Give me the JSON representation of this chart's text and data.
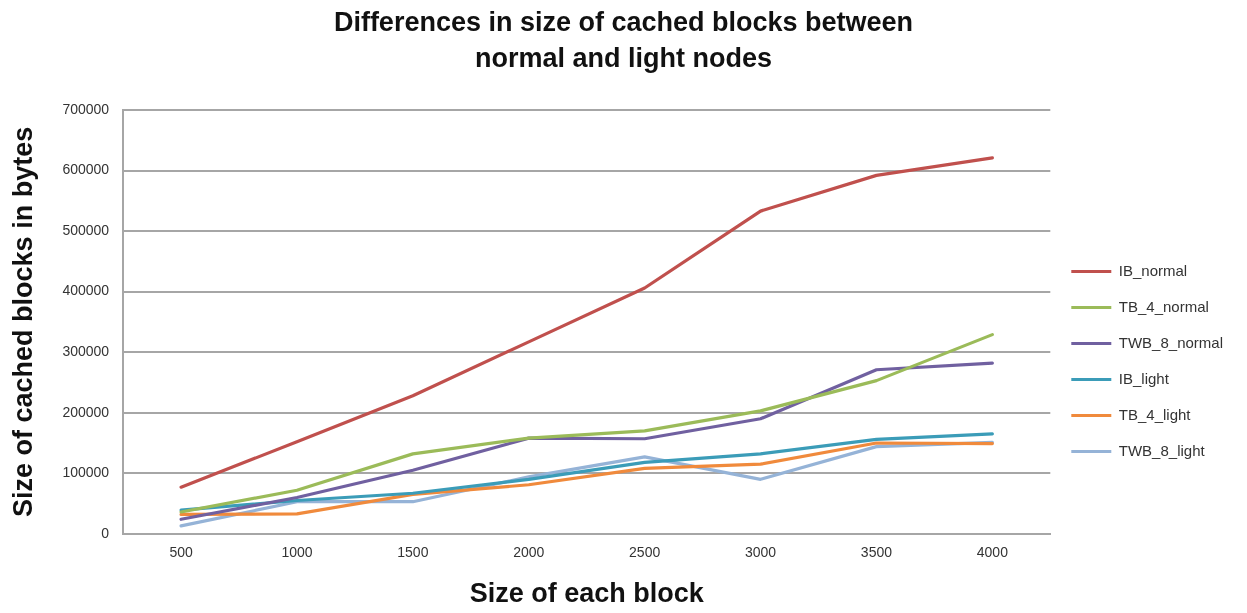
{
  "chart_data": {
    "type": "line",
    "title": "Differences in size of cached blocks between normal and light nodes",
    "xlabel": "Size of each block",
    "ylabel": "Size of cached blocks in bytes",
    "categories": [
      "500",
      "1000",
      "1500",
      "2000",
      "2500",
      "3000",
      "3500",
      "4000"
    ],
    "series": [
      {
        "name": "IB_normal",
        "color": "#c0504d",
        "values": [
          77000,
          152000,
          228000,
          317000,
          406000,
          533000,
          592000,
          621000
        ]
      },
      {
        "name": "TB_4_normal",
        "color": "#9bbb59",
        "values": [
          36000,
          72000,
          132000,
          158000,
          170000,
          203000,
          253000,
          329000
        ]
      },
      {
        "name": "TWB_8_normal",
        "color": "#7060a0",
        "values": [
          24000,
          60000,
          105000,
          158000,
          157000,
          190000,
          271000,
          282000
        ]
      },
      {
        "name": "IB_light",
        "color": "#3b9cb8",
        "values": [
          39000,
          55000,
          67000,
          90000,
          118000,
          132000,
          156000,
          165000
        ]
      },
      {
        "name": "TB_4_light",
        "color": "#f08a3c",
        "values": [
          32000,
          33000,
          65000,
          81000,
          108000,
          115000,
          150000,
          149000
        ]
      },
      {
        "name": "TWB_8_light",
        "color": "#95b3d7",
        "values": [
          13000,
          53000,
          53000,
          94000,
          127000,
          90000,
          144000,
          151000
        ]
      }
    ],
    "ylim": [
      0,
      700000
    ],
    "yticks": [
      0,
      100000,
      200000,
      300000,
      400000,
      500000,
      600000,
      700000
    ],
    "grid": "y",
    "legend": "right",
    "line_style": "solid"
  }
}
